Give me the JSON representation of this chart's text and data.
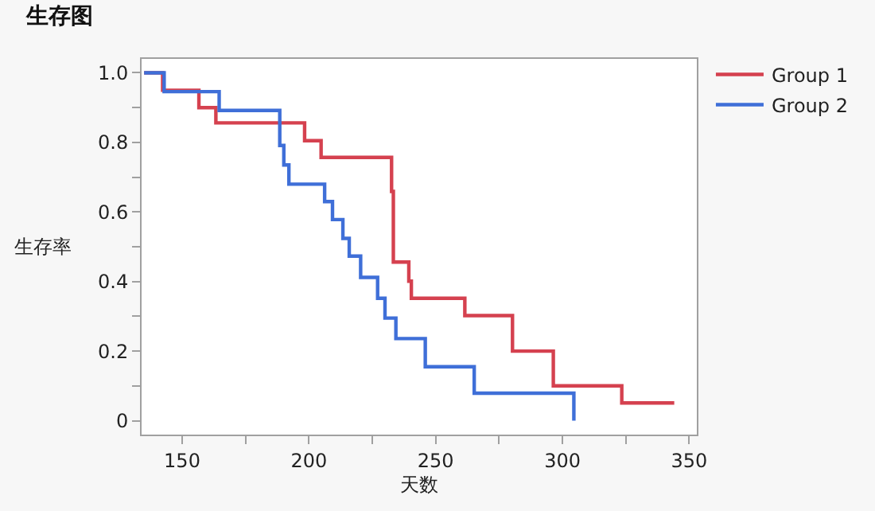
{
  "chart_data": {
    "type": "step",
    "title": "生存图",
    "xlabel": "天数",
    "ylabel": "生存率",
    "xlim": [
      134,
      353
    ],
    "xticks": [
      150,
      {
        "value": 175,
        "label": null
      },
      200,
      {
        "value": 225,
        "label": null
      },
      250,
      {
        "value": 275,
        "label": null
      },
      300,
      {
        "value": 325,
        "label": null
      },
      350
    ],
    "ylim": [
      -0.04,
      1.04
    ],
    "yticks": [
      0,
      {
        "value": 0.1,
        "label": null
      },
      0.2,
      {
        "value": 0.3,
        "label": null
      },
      0.4,
      {
        "value": 0.5,
        "label": null
      },
      0.6,
      {
        "value": 0.7,
        "label": null
      },
      0.8,
      {
        "value": 0.9,
        "label": null
      },
      {
        "value": 1,
        "label": "1.0"
      }
    ],
    "grid": false,
    "legend": "top right",
    "marker": "none",
    "line_style": "solid",
    "series": [
      {
        "name": "Group 1",
        "color": "#d5414f",
        "x": [
          135,
          142.3,
          156.6,
          163.3,
          198.3,
          204.8,
          232.6,
          233.3,
          239.4,
          240.4,
          261.5,
          280.3,
          296.4,
          323.4,
          344.1
        ],
        "values": [
          1.0,
          0.95,
          0.9,
          0.856,
          0.805,
          0.757,
          0.659,
          0.456,
          0.401,
          0.352,
          0.302,
          0.2,
          0.1,
          0.051,
          0.051
        ]
      },
      {
        "name": "Group 2",
        "color": "#3f6fd8",
        "x": [
          135,
          142.9,
          164.6,
          188.5,
          190.1,
          192.1,
          206.2,
          209.3,
          213.4,
          215.9,
          220.4,
          227.1,
          230.0,
          234.3,
          245.9,
          265.2,
          304.5
        ],
        "values": [
          1.0,
          0.946,
          0.892,
          0.791,
          0.735,
          0.68,
          0.63,
          0.578,
          0.524,
          0.473,
          0.412,
          0.352,
          0.295,
          0.236,
          0.155,
          0.079,
          0.0
        ]
      }
    ]
  }
}
